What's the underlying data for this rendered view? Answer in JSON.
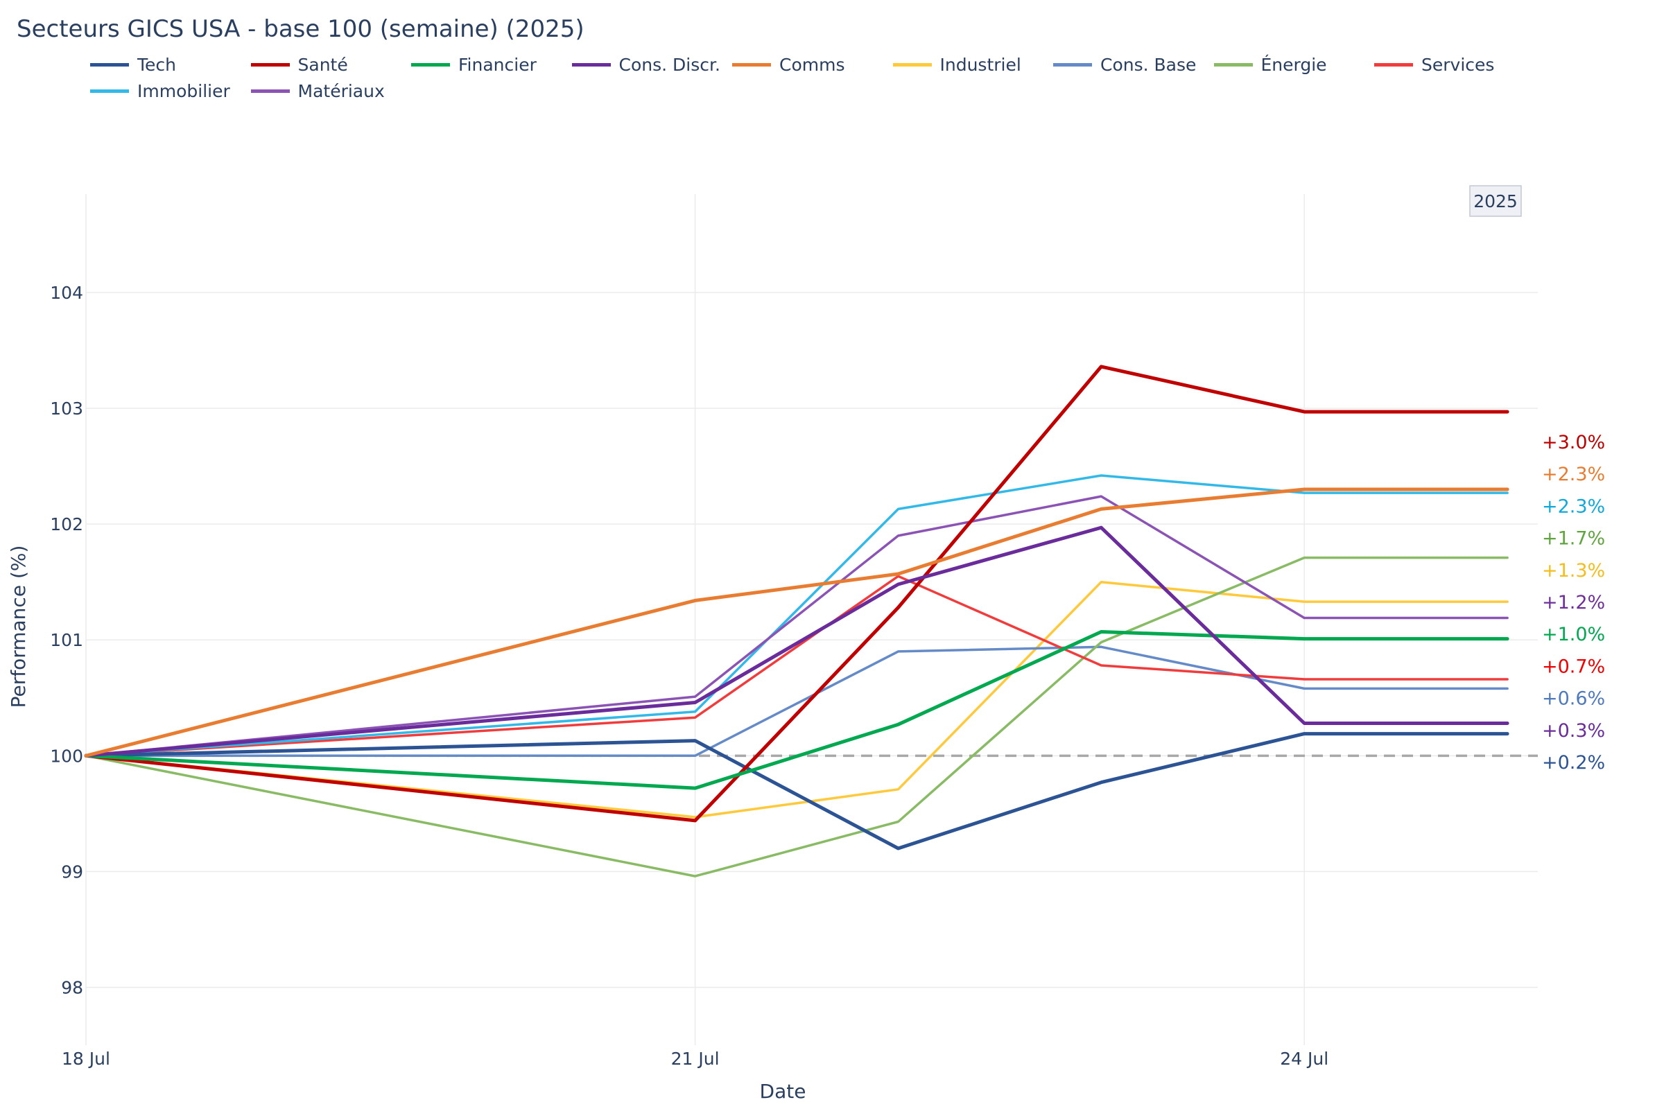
{
  "title": "Secteurs GICS USA - base 100 (semaine) (2025)",
  "chart_data": {
    "type": "line",
    "title": "Secteurs GICS USA - base 100 (semaine) (2025)",
    "xlabel": "Date",
    "ylabel": "Performance (%)",
    "x": [
      0,
      1,
      2,
      3,
      4,
      5
    ],
    "xtick_positions": [
      0,
      3,
      6
    ],
    "xtick_labels": [
      "18 Jul",
      "21 Jul",
      "24 Jul"
    ],
    "xlim": [
      0,
      7.15
    ],
    "ylim": [
      97.5,
      104.85
    ],
    "yticks": [
      98,
      99,
      100,
      101,
      102,
      103,
      104
    ],
    "baseline": 100,
    "year_badge": "2025",
    "series_x": [
      0,
      3,
      4,
      5,
      6,
      7
    ],
    "series": [
      {
        "name": "Tech",
        "color": "#2c5494",
        "width": 5,
        "values": [
          100,
          100.13,
          99.2,
          99.77,
          100.19,
          100.19
        ],
        "end_label": "+0.2%",
        "label_color": "#2c5494"
      },
      {
        "name": "Santé",
        "color": "#c00000",
        "width": 5,
        "values": [
          100,
          99.44,
          101.28,
          103.36,
          102.97,
          102.97
        ],
        "end_label": "+3.0%",
        "label_color": "#c00000"
      },
      {
        "name": "Financier",
        "color": "#00a84f",
        "width": 5,
        "values": [
          100,
          99.72,
          100.27,
          101.07,
          101.01,
          101.01
        ],
        "end_label": "+1.0%",
        "label_color": "#00a84f"
      },
      {
        "name": "Cons. Discr.",
        "color": "#6a2c9a",
        "width": 5,
        "values": [
          100,
          100.46,
          101.48,
          101.97,
          100.28,
          100.28
        ],
        "end_label": "+0.3%",
        "label_color": "#6a2c9a"
      },
      {
        "name": "Comms",
        "color": "#e87d32",
        "width": 5,
        "values": [
          100,
          101.34,
          101.57,
          102.13,
          102.3,
          102.3
        ],
        "end_label": "+2.3%",
        "label_color": "#e87d32"
      },
      {
        "name": "Industriel",
        "color": "#ffc93c",
        "width": 3.5,
        "values": [
          100,
          99.47,
          99.71,
          101.5,
          101.33,
          101.33
        ],
        "end_label": "+1.3%",
        "label_color": "#f4bc1d"
      },
      {
        "name": "Cons. Base",
        "color": "#648ac8",
        "width": 3.5,
        "values": [
          100,
          100,
          100.9,
          100.94,
          100.58,
          100.58
        ],
        "end_label": "+0.6%",
        "label_color": "#4f79bd"
      },
      {
        "name": "Énergie",
        "color": "#88bb64",
        "width": 3.5,
        "values": [
          100,
          98.96,
          99.43,
          100.98,
          101.71,
          101.71
        ],
        "end_label": "+1.7%",
        "label_color": "#5fa53d"
      },
      {
        "name": "Services",
        "color": "#f03c3c",
        "width": 3.5,
        "values": [
          100,
          100.33,
          101.55,
          100.78,
          100.66,
          100.66
        ],
        "end_label": "+0.7%",
        "label_color": "#f00000"
      },
      {
        "name": "Immobilier",
        "color": "#32b9e8",
        "width": 3.5,
        "values": [
          100,
          100.38,
          102.13,
          102.42,
          102.27,
          102.27
        ],
        "end_label": "+2.3%",
        "label_color": "#10a9dc"
      },
      {
        "name": "Matériaux",
        "color": "#8b54b4",
        "width": 3.5,
        "values": [
          100,
          100.51,
          101.9,
          102.24,
          101.19,
          101.19
        ],
        "end_label": "+1.2%",
        "label_color": "#6e2f9a"
      }
    ],
    "end_label_order": [
      "Santé",
      "Comms",
      "Immobilier",
      "Énergie",
      "Industriel",
      "Matériaux",
      "Financier",
      "Services",
      "Cons. Base",
      "Cons. Discr.",
      "Tech"
    ],
    "legend_position": "top-left",
    "grid": true
  }
}
